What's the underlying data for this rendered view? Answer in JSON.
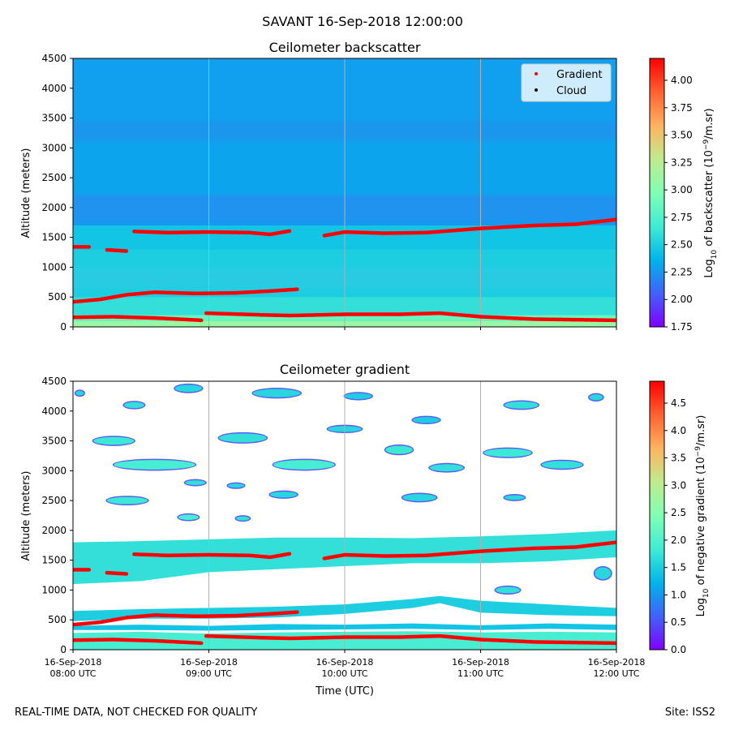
{
  "header": {
    "suptitle": "SAVANT 16-Sep-2018 12:00:00",
    "footer_left": "REAL-TIME DATA, NOT CHECKED FOR QUALITY",
    "footer_right": "Site: ISS2"
  },
  "chart_data": [
    {
      "type": "heatmap",
      "title": "Ceilometer backscatter",
      "ylabel": "Altitude (meters)",
      "xlabel": "",
      "xlim_hours": [
        8,
        12
      ],
      "ylim": [
        0,
        4500
      ],
      "yticks": [
        0,
        500,
        1000,
        1500,
        2000,
        2500,
        3000,
        3500,
        4000,
        4500
      ],
      "x_tick_hours": [
        8,
        9,
        10,
        11,
        12
      ],
      "x_tick_labels": [],
      "colorbar": {
        "label_base": "Log",
        "label_sub": "10",
        "label_mid": " of backscatter (10",
        "label_sup": "−9",
        "label_end": "/m.sr)",
        "range": [
          1.75,
          4.2
        ],
        "ticks": [
          "1.75",
          "2.00",
          "2.25",
          "2.50",
          "2.75",
          "3.00",
          "3.25",
          "3.50",
          "3.75",
          "4.00"
        ]
      },
      "field_bands": [
        {
          "alt": [
            0,
            100
          ],
          "value": 3.1
        },
        {
          "alt": [
            100,
            200
          ],
          "value": 2.85
        },
        {
          "alt": [
            200,
            500
          ],
          "value": 2.6
        },
        {
          "alt": [
            500,
            1300
          ],
          "value": 2.5
        },
        {
          "alt": [
            1300,
            1700
          ],
          "value": 2.45
        },
        {
          "alt": [
            1700,
            2200
          ],
          "value": 2.25
        },
        {
          "alt": [
            2200,
            3200
          ],
          "value": 2.3
        },
        {
          "alt": [
            3200,
            4500
          ],
          "value": 2.28
        }
      ],
      "legend": {
        "position": "upper right",
        "entries": [
          {
            "label": "Gradient",
            "color": "#ff0000"
          },
          {
            "label": "Cloud",
            "color": "#000000"
          }
        ]
      }
    },
    {
      "type": "heatmap",
      "title": "Ceilometer gradient",
      "ylabel": "Altitude (meters)",
      "xlabel": "Time (UTC)",
      "xlim_hours": [
        8,
        12
      ],
      "ylim": [
        0,
        4500
      ],
      "yticks": [
        0,
        500,
        1000,
        1500,
        2000,
        2500,
        3000,
        3500,
        4000,
        4500
      ],
      "x_tick_hours": [
        8,
        9,
        10,
        11,
        12
      ],
      "x_tick_labels": [
        [
          "16-Sep-2018",
          "08:00 UTC"
        ],
        [
          "16-Sep-2018",
          "09:00 UTC"
        ],
        [
          "16-Sep-2018",
          "10:00 UTC"
        ],
        [
          "16-Sep-2018",
          "11:00 UTC"
        ],
        [
          "16-Sep-2018",
          "12:00 UTC"
        ]
      ],
      "colorbar": {
        "label_base": "Log",
        "label_sub": "10",
        "label_mid": " of negative gradient (10",
        "label_sup": "−9",
        "label_end": "/m.sr)",
        "range": [
          0.0,
          4.9
        ],
        "ticks": [
          "0.0",
          "0.5",
          "1.0",
          "1.5",
          "2.0",
          "2.5",
          "3.0",
          "3.5",
          "4.0",
          "4.5"
        ]
      },
      "layers": [
        {
          "value": 1.7,
          "lower": [
            [
              8,
              1100
            ],
            [
              8.5,
              1150
            ],
            [
              9,
              1300
            ],
            [
              9.5,
              1350
            ],
            [
              10,
              1400
            ],
            [
              10.5,
              1450
            ],
            [
              11,
              1450
            ],
            [
              11.5,
              1480
            ],
            [
              12,
              1550
            ]
          ],
          "upper": [
            [
              8,
              1800
            ],
            [
              8.5,
              1820
            ],
            [
              9,
              1850
            ],
            [
              9.5,
              1880
            ],
            [
              10,
              1880
            ],
            [
              10.5,
              1870
            ],
            [
              11,
              1900
            ],
            [
              11.5,
              1940
            ],
            [
              12,
              2000
            ]
          ]
        },
        {
          "value": 1.5,
          "lower": [
            [
              8,
              480
            ],
            [
              8.5,
              520
            ],
            [
              9,
              520
            ],
            [
              9.5,
              540
            ],
            [
              10,
              600
            ],
            [
              10.5,
              700
            ],
            [
              10.7,
              780
            ],
            [
              11,
              620
            ],
            [
              11.5,
              580
            ],
            [
              12,
              560
            ]
          ],
          "upper": [
            [
              8,
              650
            ],
            [
              8.5,
              680
            ],
            [
              9,
              700
            ],
            [
              9.5,
              720
            ],
            [
              10,
              760
            ],
            [
              10.5,
              850
            ],
            [
              10.7,
              900
            ],
            [
              11,
              820
            ],
            [
              11.5,
              760
            ],
            [
              12,
              700
            ]
          ]
        },
        {
          "value": 1.4,
          "lower": [
            [
              8,
              330
            ],
            [
              8.5,
              330
            ],
            [
              9,
              320
            ],
            [
              9.5,
              330
            ],
            [
              10,
              340
            ],
            [
              10.5,
              350
            ],
            [
              11,
              330
            ],
            [
              11.5,
              350
            ],
            [
              12,
              330
            ]
          ],
          "upper": [
            [
              8,
              400
            ],
            [
              8.5,
              420
            ],
            [
              9,
              400
            ],
            [
              9.5,
              430
            ],
            [
              10,
              420
            ],
            [
              10.5,
              440
            ],
            [
              11,
              410
            ],
            [
              11.5,
              440
            ],
            [
              12,
              420
            ]
          ]
        },
        {
          "value": 1.9,
          "lower": [
            [
              8,
              0
            ],
            [
              12,
              0
            ]
          ],
          "upper": [
            [
              8,
              280
            ],
            [
              8.5,
              300
            ],
            [
              9,
              270
            ],
            [
              9.5,
              290
            ],
            [
              10,
              300
            ],
            [
              10.5,
              310
            ],
            [
              11,
              290
            ],
            [
              11.5,
              300
            ],
            [
              12,
              290
            ]
          ]
        }
      ],
      "patches": [
        {
          "h": 8.05,
          "alt": 4300,
          "w": 0.06,
          "t": 80,
          "value": 1.6
        },
        {
          "h": 8.45,
          "alt": 4100,
          "w": 0.15,
          "t": 100,
          "value": 1.7
        },
        {
          "h": 8.85,
          "alt": 4380,
          "w": 0.2,
          "t": 120,
          "value": 1.6
        },
        {
          "h": 9.5,
          "alt": 4300,
          "w": 0.35,
          "t": 140,
          "value": 1.6
        },
        {
          "h": 10.1,
          "alt": 4250,
          "w": 0.2,
          "t": 100,
          "value": 1.5
        },
        {
          "h": 10.6,
          "alt": 3850,
          "w": 0.2,
          "t": 100,
          "value": 1.5
        },
        {
          "h": 11.3,
          "alt": 4100,
          "w": 0.25,
          "t": 120,
          "value": 1.7
        },
        {
          "h": 11.85,
          "alt": 4230,
          "w": 0.1,
          "t": 100,
          "value": 1.6
        },
        {
          "h": 8.3,
          "alt": 3500,
          "w": 0.3,
          "t": 130,
          "value": 1.8
        },
        {
          "h": 9.25,
          "alt": 3550,
          "w": 0.35,
          "t": 150,
          "value": 1.7
        },
        {
          "h": 10.0,
          "alt": 3700,
          "w": 0.25,
          "t": 100,
          "value": 1.6
        },
        {
          "h": 10.4,
          "alt": 3350,
          "w": 0.2,
          "t": 140,
          "value": 1.8
        },
        {
          "h": 11.2,
          "alt": 3300,
          "w": 0.35,
          "t": 140,
          "value": 1.8
        },
        {
          "h": 8.6,
          "alt": 3100,
          "w": 0.6,
          "t": 160,
          "value": 1.9
        },
        {
          "h": 9.7,
          "alt": 3100,
          "w": 0.45,
          "t": 160,
          "value": 1.9
        },
        {
          "h": 10.75,
          "alt": 3050,
          "w": 0.25,
          "t": 120,
          "value": 1.7
        },
        {
          "h": 11.6,
          "alt": 3100,
          "w": 0.3,
          "t": 130,
          "value": 1.7
        },
        {
          "h": 8.9,
          "alt": 2800,
          "w": 0.15,
          "t": 80,
          "value": 1.7
        },
        {
          "h": 9.2,
          "alt": 2750,
          "w": 0.12,
          "t": 70,
          "value": 1.6
        },
        {
          "h": 8.4,
          "alt": 2500,
          "w": 0.3,
          "t": 120,
          "value": 1.8
        },
        {
          "h": 9.55,
          "alt": 2600,
          "w": 0.2,
          "t": 100,
          "value": 1.6
        },
        {
          "h": 10.55,
          "alt": 2550,
          "w": 0.25,
          "t": 120,
          "value": 1.6
        },
        {
          "h": 11.25,
          "alt": 2550,
          "w": 0.15,
          "t": 80,
          "value": 1.6
        },
        {
          "h": 8.85,
          "alt": 2220,
          "w": 0.15,
          "t": 90,
          "value": 1.9
        },
        {
          "h": 9.25,
          "alt": 2200,
          "w": 0.1,
          "t": 70,
          "value": 1.7
        },
        {
          "h": 11.2,
          "alt": 1000,
          "w": 0.18,
          "t": 110,
          "value": 1.7
        },
        {
          "h": 11.9,
          "alt": 1280,
          "w": 0.12,
          "t": 200,
          "value": 1.6
        }
      ]
    }
  ],
  "gradient_segments": [
    [
      [
        8.0,
        1340
      ],
      [
        8.12,
        1340
      ]
    ],
    [
      [
        8.25,
        1290
      ],
      [
        8.4,
        1270
      ]
    ],
    [
      [
        8.45,
        1600
      ],
      [
        8.7,
        1580
      ],
      [
        9.0,
        1590
      ],
      [
        9.3,
        1580
      ],
      [
        9.45,
        1550
      ],
      [
        9.6,
        1610
      ]
    ],
    [
      [
        8.0,
        420
      ],
      [
        8.2,
        460
      ],
      [
        8.4,
        540
      ],
      [
        8.6,
        580
      ],
      [
        8.9,
        560
      ],
      [
        9.2,
        570
      ],
      [
        9.45,
        600
      ],
      [
        9.65,
        630
      ]
    ],
    [
      [
        8.0,
        160
      ],
      [
        8.3,
        170
      ],
      [
        8.6,
        150
      ],
      [
        8.95,
        110
      ]
    ],
    [
      [
        8.98,
        230
      ],
      [
        9.4,
        200
      ],
      [
        9.6,
        190
      ],
      [
        10.0,
        210
      ],
      [
        10.4,
        210
      ],
      [
        10.7,
        230
      ],
      [
        11.0,
        170
      ],
      [
        11.4,
        130
      ],
      [
        12.0,
        110
      ]
    ],
    [
      [
        9.85,
        1530
      ],
      [
        10.0,
        1590
      ],
      [
        10.3,
        1570
      ],
      [
        10.6,
        1580
      ],
      [
        11.0,
        1650
      ],
      [
        11.4,
        1700
      ],
      [
        11.7,
        1720
      ],
      [
        12.0,
        1800
      ]
    ]
  ]
}
